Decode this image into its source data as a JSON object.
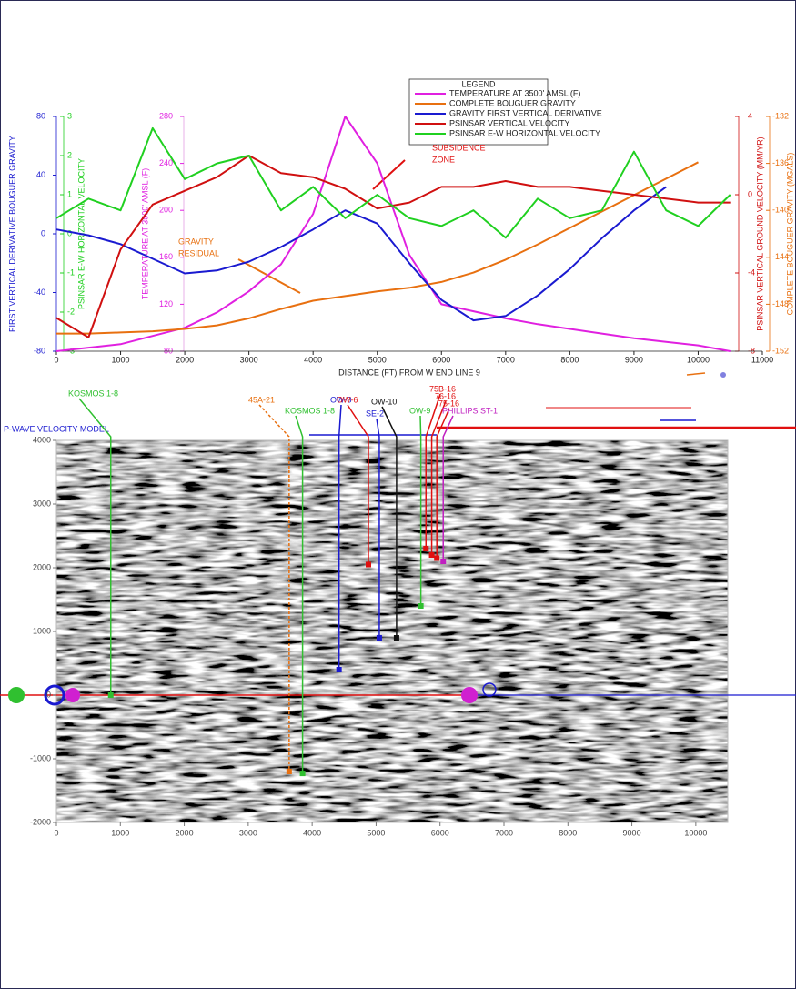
{
  "chart_data": [
    {
      "type": "line",
      "xlabel": "DISTANCE (FT) FROM W END LINE 9",
      "x": [
        0,
        500,
        1000,
        1500,
        2000,
        2500,
        3000,
        3500,
        4000,
        4500,
        5000,
        5500,
        6000,
        6500,
        7000,
        7500,
        8000,
        8500,
        9000,
        9500,
        10000,
        10500
      ],
      "xlim": [
        0,
        11000
      ],
      "xticks": [
        0,
        1000,
        2000,
        3000,
        4000,
        5000,
        6000,
        7000,
        8000,
        9000,
        10000,
        11000
      ],
      "ylim": [
        -80,
        80
      ],
      "yticks": [
        80,
        40,
        0,
        -40,
        -80
      ],
      "ylabel": "FIRST VERTICAL DERIVATIVE BOUGUER GRAVITY",
      "y2lim": [
        -3,
        3
      ],
      "y2ticks": [
        3,
        2,
        1,
        0,
        -1,
        -2,
        -3
      ],
      "y2label": "PSINSAR E-W HORIZONTAL VELOCITY",
      "y3lim": [
        80,
        280
      ],
      "y3ticks": [
        280,
        240,
        200,
        160,
        120,
        80
      ],
      "y3label": "TEMPERATURE AT 3500' AMSL (F)",
      "y4lim": [
        -8,
        4
      ],
      "y4ticks": [
        4,
        0,
        -4,
        -8
      ],
      "y4label": "PSINSAR VERTICAL GROUND VELOCITY (MM/YR)",
      "y5lim": [
        -152,
        -132
      ],
      "y5ticks": [
        -132,
        -136,
        -140,
        -144,
        -148,
        -152
      ],
      "y5label": "COMPLETE BOUGUER GRAVITY (MGALS)",
      "legend_title": "LEGEND",
      "series": [
        {
          "name": "TEMPERATURE AT 3500' AMSL (F)",
          "color": "#e020e0",
          "axis": "y3",
          "values": [
            80,
            83,
            86,
            93,
            100,
            113,
            131,
            154,
            197,
            280,
            240,
            162,
            120,
            114,
            108,
            103,
            99,
            95,
            91,
            88,
            85,
            80
          ]
        },
        {
          "name": "COMPLETE BOUGUER GRAVITY",
          "color": "#e87010",
          "axis": "y5",
          "values": [
            -150.5,
            -150.5,
            -150.4,
            -150.3,
            -150.1,
            -149.8,
            -149.2,
            -148.4,
            -147.7,
            -147.3,
            -146.9,
            -146.6,
            -146.1,
            -145.3,
            -144.2,
            -142.9,
            -141.5,
            -140.1,
            -138.7,
            -137.3,
            -135.9,
            null
          ]
        },
        {
          "name": "GRAVITY FIRST VERTICAL DERIVATIVE",
          "color": "#1a1ad0",
          "axis": "y",
          "values": [
            3,
            -1,
            -7,
            -17,
            -27,
            -25,
            -19,
            -9,
            3,
            16,
            7,
            -20,
            -45,
            -59,
            -56,
            -42,
            -24,
            -3,
            16,
            32,
            null,
            null
          ]
        },
        {
          "name": "PSINSAR VERTICAL VELOCITY",
          "color": "#d01010",
          "axis": "y4",
          "values": [
            -6.3,
            -7.3,
            -2.8,
            -0.5,
            0.2,
            0.9,
            2.0,
            1.1,
            0.9,
            0.3,
            -0.7,
            -0.4,
            0.4,
            0.4,
            0.7,
            0.4,
            0.4,
            0.2,
            0,
            -0.2,
            -0.4,
            -0.4
          ]
        },
        {
          "name": "PSINSAR E-W HORIZONTAL VELOCITY",
          "color": "#20d020",
          "axis": "y2",
          "values": [
            0.4,
            0.9,
            0.6,
            2.7,
            1.4,
            1.8,
            2.0,
            0.6,
            1.2,
            0.4,
            1.0,
            0.4,
            0.2,
            0.6,
            -0.1,
            0.9,
            0.4,
            0.6,
            2.1,
            0.6,
            0.2,
            1.0
          ]
        }
      ],
      "annotations": [
        {
          "text": [
            "SUBSIDENCE",
            "ZONE"
          ],
          "color": "#e01010"
        },
        {
          "text": [
            "GRAVITY",
            "RESIDUAL"
          ],
          "color": "#e87010"
        }
      ]
    },
    {
      "type": "section",
      "title": "P-WAVE VELOCITY MODEL",
      "xlim": [
        0,
        10500
      ],
      "xticks": [
        0,
        1000,
        2000,
        3000,
        4000,
        5000,
        6000,
        7000,
        8000,
        9000,
        10000
      ],
      "ylim": [
        -2000,
        4000
      ],
      "yticks": [
        4000,
        3000,
        2000,
        1000,
        0,
        -1000,
        -2000
      ],
      "wells": [
        {
          "name": "KOSMOS 1-8",
          "x": 850,
          "bottom": 0,
          "color": "#30c030"
        },
        {
          "name": "45A-21",
          "x": 3640,
          "bottom": -1200,
          "color": "#e87010"
        },
        {
          "name": "KOSMOS 1-8",
          "x": 3850,
          "bottom": -1230,
          "color": "#30c030"
        },
        {
          "name": "OW-8",
          "x": 4420,
          "bottom": 400,
          "color": "#1a1ad0"
        },
        {
          "name": "OW-6",
          "x": 4880,
          "bottom": 2050,
          "color": "#e01010"
        },
        {
          "name": "OW-10",
          "x": 5320,
          "bottom": 900,
          "color": "#111111"
        },
        {
          "name": "SE-2",
          "x": 5050,
          "bottom": 900,
          "color": "#1a1ad0"
        },
        {
          "name": "OW-9",
          "x": 5700,
          "bottom": 1400,
          "color": "#30c030"
        },
        {
          "name": "75B-16",
          "x": 5780,
          "bottom": 2300,
          "color": "#e01010"
        },
        {
          "name": "76-16",
          "x": 5870,
          "bottom": 2200,
          "color": "#e01010"
        },
        {
          "name": "75-16",
          "x": 5950,
          "bottom": 2150,
          "color": "#e01010"
        },
        {
          "name": "PHILLIPS ST-1",
          "x": 6050,
          "bottom": 2100,
          "color": "#c020c0"
        }
      ]
    }
  ]
}
